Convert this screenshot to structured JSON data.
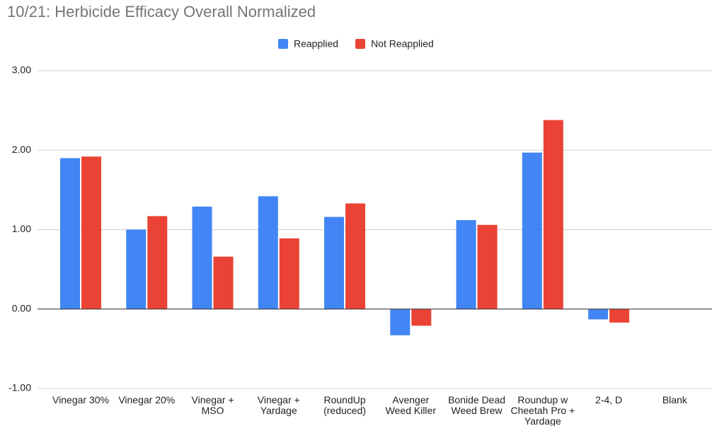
{
  "chart_data": {
    "type": "bar",
    "title": "10/21: Herbicide Efficacy Overall Normalized",
    "categories": [
      "Vinegar 30%",
      "Vinegar 20%",
      "Vinegar + MSO",
      "Vinegar + Yardage",
      "RoundUp (reduced)",
      "Avenger Weed Killer",
      "Bonide Dead Weed Brew",
      "Roundup w Cheetah Pro + Yardage",
      "2-4, D",
      "Blank"
    ],
    "series": [
      {
        "name": "Reapplied",
        "color": "#4285f4",
        "values": [
          1.9,
          1.0,
          1.29,
          1.42,
          1.16,
          -0.33,
          1.12,
          1.97,
          -0.13,
          0
        ]
      },
      {
        "name": "Not Reapplied",
        "color": "#ea4335",
        "values": [
          1.92,
          1.17,
          0.66,
          0.89,
          1.33,
          -0.21,
          1.06,
          2.38,
          -0.17,
          0
        ]
      }
    ],
    "ylim": [
      -1,
      3
    ],
    "yticks": [
      {
        "value": -1,
        "label": "-1.00"
      },
      {
        "value": 0,
        "label": "0.00"
      },
      {
        "value": 1,
        "label": "1.00"
      },
      {
        "value": 2,
        "label": "2.00"
      },
      {
        "value": 3,
        "label": "3.00"
      }
    ],
    "grid": true,
    "legend": "top"
  }
}
